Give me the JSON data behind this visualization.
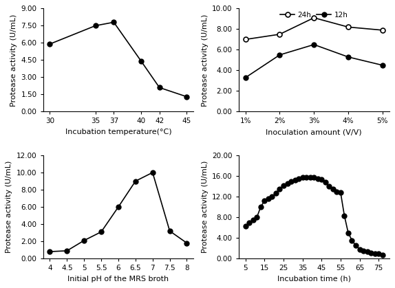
{
  "panel_tl": {
    "x": [
      30,
      35,
      37,
      40,
      42,
      45
    ],
    "y": [
      5.9,
      7.5,
      7.8,
      4.4,
      2.1,
      1.3
    ],
    "xlabel": "Incubation temperature(°C)",
    "ylabel": "Protease activity (U/mL)",
    "ylim": [
      0,
      9.0
    ],
    "yticks": [
      0.0,
      1.5,
      3.0,
      4.5,
      6.0,
      7.5,
      9.0
    ],
    "xticks": [
      30,
      35,
      37,
      40,
      42,
      45
    ]
  },
  "panel_tr": {
    "x": [
      1,
      2,
      3,
      4,
      5
    ],
    "xlabels": [
      "1%",
      "2%",
      "3%",
      "4%",
      "5%"
    ],
    "y_24h": [
      7.0,
      7.5,
      9.1,
      8.2,
      7.9
    ],
    "y_12h": [
      3.3,
      5.5,
      6.5,
      5.3,
      4.5
    ],
    "xlabel": "Inoculation amount (V/V)",
    "ylabel": "Protease activity (U/mL)",
    "ylim": [
      0,
      10.0
    ],
    "yticks": [
      0.0,
      2.0,
      4.0,
      6.0,
      8.0,
      10.0
    ],
    "legend_24h": "24h",
    "legend_12h": "12h"
  },
  "panel_bl": {
    "x": [
      4,
      4.5,
      5,
      5.5,
      6,
      6.5,
      7,
      7.5,
      8
    ],
    "y": [
      0.8,
      0.9,
      2.1,
      3.1,
      6.0,
      9.0,
      10.0,
      3.2,
      1.8
    ],
    "xlabel": "Initial pH of the MRS broth",
    "ylabel": "Protease activity (U/mL)",
    "ylim": [
      0,
      12.0
    ],
    "yticks": [
      0.0,
      2.0,
      4.0,
      6.0,
      8.0,
      10.0,
      12.0
    ],
    "xticks": [
      4,
      4.5,
      5,
      5.5,
      6,
      6.5,
      7,
      7.5,
      8
    ],
    "xticklabels": [
      "4",
      "4.5",
      "5",
      "5.5",
      "6",
      "6.5",
      "7",
      "7.5",
      "8"
    ]
  },
  "panel_br": {
    "x": [
      5,
      7,
      9,
      11,
      13,
      15,
      17,
      19,
      21,
      23,
      25,
      27,
      29,
      31,
      33,
      35,
      37,
      39,
      41,
      43,
      45,
      47,
      49,
      51,
      53,
      55,
      57,
      59,
      61,
      63,
      65,
      67,
      69,
      71,
      73,
      75,
      77
    ],
    "y": [
      6.3,
      7.0,
      7.5,
      8.0,
      10.0,
      11.2,
      11.6,
      12.0,
      12.7,
      13.5,
      14.2,
      14.6,
      14.9,
      15.2,
      15.5,
      15.7,
      15.8,
      15.8,
      15.7,
      15.5,
      15.3,
      14.8,
      14.0,
      13.5,
      13.0,
      12.8,
      8.3,
      5.0,
      3.5,
      2.5,
      1.8,
      1.5,
      1.3,
      1.1,
      1.0,
      0.9,
      0.7
    ],
    "xlabel": "Incubation time (h)",
    "ylabel": "Protease activity (U/mL)",
    "ylim": [
      0,
      20.0
    ],
    "yticks": [
      0.0,
      4.0,
      8.0,
      12.0,
      16.0,
      20.0
    ],
    "xticks": [
      5,
      15,
      25,
      35,
      45,
      55,
      65,
      75
    ]
  },
  "line_color": "#000000",
  "marker_size": 5,
  "line_width": 1.2,
  "font_size_label": 8,
  "font_size_tick": 7.5
}
